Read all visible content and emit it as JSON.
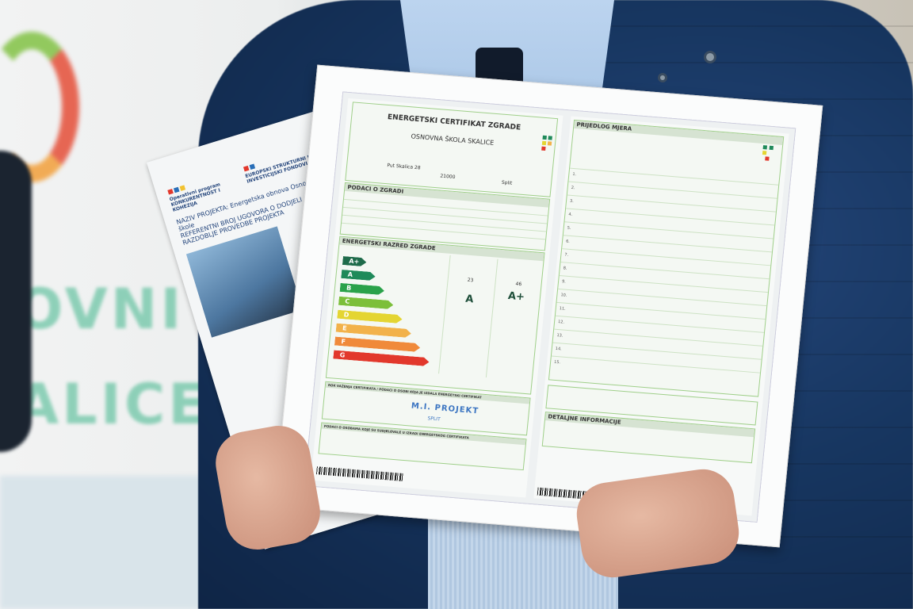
{
  "scene": "man in navy quilted jacket holding a framed energy certificate and a project brochure",
  "banner": {
    "text_lines": [
      "OVNI",
      "ALICE"
    ]
  },
  "brochure": {
    "logo_left": "Operativni program KONKURENTNOST I KOHEZIJA",
    "logo_right": "EUROPSKI STRUKTURNI I INVESTICIJSKI FONDOVI",
    "lines": [
      "NAZIV PROJEKTA: Energetska obnova Osnovne škole",
      "REFERENTNI BROJ UGOVORA O DODJELI",
      "RAZDOBLJE PROVEDBE PROJEKTA"
    ]
  },
  "certificate": {
    "title": "ENERGETSKI CERTIFIKAT ZGRADE",
    "building": "OSNOVNA ŠKOLA SKALICE",
    "street": "Put Skalica 28",
    "postcode": "21000",
    "city": "Split",
    "section_building": "PODACI O ZGRADI",
    "section_class": "ENERGETSKI RAZRED ZGRADE",
    "classes": [
      "A+",
      "A",
      "B",
      "C",
      "D",
      "E",
      "F",
      "G"
    ],
    "class_colors": [
      "#1e6b4a",
      "#1f8a5a",
      "#2aa24a",
      "#7cbf3a",
      "#e4d532",
      "#f2b24a",
      "#f08a3a",
      "#e2382c"
    ],
    "heating_value": "23",
    "heating_class": "A",
    "primary_value": "46",
    "primary_class": "A+",
    "section_issuer": "ROK VAŽENJA CERTIFIKATA / PODACI O OSOBI KOJA JE IZDALA ENERGETSKI CERTIFIKAT",
    "stamp": "M.I. PROJEKT",
    "stamp_city": "SPLIT",
    "section_experts": "PODACI O OSOBAMA KOJE SU SUDJELOVALE U IZRADI ENERGETSKOG CERTIFIKATA",
    "measures_title": "PRIJEDLOG MJERA",
    "measure_numbers": [
      "1.",
      "2.",
      "3.",
      "4.",
      "5.",
      "6.",
      "7.",
      "8.",
      "9.",
      "10.",
      "11.",
      "12.",
      "13.",
      "14.",
      "15."
    ],
    "details_title": "DETALJNE INFORMACIJE"
  }
}
